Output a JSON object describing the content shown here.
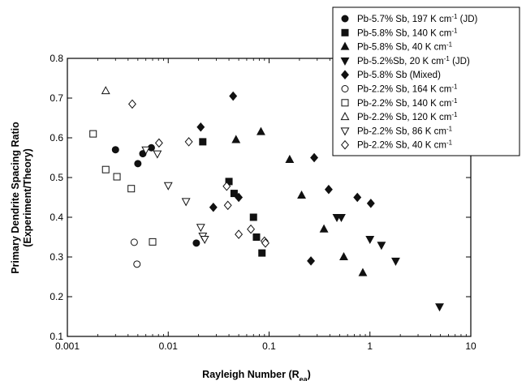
{
  "chart_data": {
    "type": "scatter",
    "xlabel": "Rayleigh Number (R",
    "xlabel_sub": "ea",
    "xlabel_end": ")",
    "ylabel_line1": "Primary Dendrite Spacing Ratio",
    "ylabel_line2": "(Experiment/Theory)",
    "x_scale": "log",
    "xlim": [
      0.001,
      10
    ],
    "ylim": [
      0.1,
      0.8
    ],
    "x_ticks": [
      0.001,
      0.01,
      0.1,
      1,
      10
    ],
    "x_tick_labels": [
      "0.001",
      "0.01",
      "0.1",
      "1",
      "10"
    ],
    "y_ticks": [
      0.1,
      0.2,
      0.3,
      0.4,
      0.5,
      0.6,
      0.7,
      0.8
    ],
    "y_tick_labels": [
      "0.1",
      "0.2",
      "0.3",
      "0.4",
      "0.5",
      "0.6",
      "0.7",
      "0.8"
    ],
    "grid": false,
    "legend_position": "top-right",
    "series": [
      {
        "name_main": "Pb-5.7% Sb, 197 K cm",
        "name_sup": "-1",
        "name_tail": " (JD)",
        "marker": "circle",
        "filled": true,
        "points": [
          [
            0.003,
            0.57
          ],
          [
            0.005,
            0.535
          ],
          [
            0.0056,
            0.56
          ],
          [
            0.0068,
            0.575
          ],
          [
            0.019,
            0.335
          ]
        ]
      },
      {
        "name_main": "Pb-5.8% Sb, 140 K cm",
        "name_sup": "-1",
        "name_tail": "",
        "marker": "square",
        "filled": true,
        "points": [
          [
            0.022,
            0.59
          ],
          [
            0.04,
            0.49
          ],
          [
            0.045,
            0.46
          ],
          [
            0.07,
            0.4
          ],
          [
            0.075,
            0.35
          ],
          [
            0.085,
            0.31
          ]
        ]
      },
      {
        "name_main": "Pb-5.8% Sb, 40 K cm",
        "name_sup": "-1",
        "name_tail": "",
        "marker": "triangle-up",
        "filled": true,
        "points": [
          [
            0.047,
            0.595
          ],
          [
            0.083,
            0.615
          ],
          [
            0.16,
            0.545
          ],
          [
            0.21,
            0.455
          ],
          [
            0.35,
            0.37
          ],
          [
            0.55,
            0.3
          ],
          [
            0.85,
            0.26
          ]
        ]
      },
      {
        "name_main": "Pb-5.2%Sb, 20 K cm",
        "name_sup": "-1",
        "name_tail": " (JD)",
        "marker": "triangle-down",
        "filled": true,
        "points": [
          [
            0.47,
            0.4
          ],
          [
            0.52,
            0.4
          ],
          [
            1.0,
            0.345
          ],
          [
            1.3,
            0.33
          ],
          [
            1.8,
            0.29
          ],
          [
            4.9,
            0.175
          ]
        ]
      },
      {
        "name_main": "Pb-5.8% Sb (Mixed)",
        "name_sup": "",
        "name_tail": "",
        "marker": "diamond",
        "filled": true,
        "points": [
          [
            0.021,
            0.627
          ],
          [
            0.044,
            0.705
          ],
          [
            0.028,
            0.425
          ],
          [
            0.05,
            0.45
          ],
          [
            0.28,
            0.55
          ],
          [
            0.39,
            0.47
          ],
          [
            0.26,
            0.29
          ],
          [
            0.75,
            0.45
          ],
          [
            1.02,
            0.435
          ]
        ]
      },
      {
        "name_main": "Pb-2.2% Sb, 164 K cm",
        "name_sup": "-1",
        "name_tail": "",
        "marker": "circle",
        "filled": false,
        "points": [
          [
            0.0046,
            0.337
          ],
          [
            0.0049,
            0.282
          ]
        ]
      },
      {
        "name_main": "Pb-2.2% Sb, 140 K cm",
        "name_sup": "-1",
        "name_tail": "",
        "marker": "square",
        "filled": false,
        "points": [
          [
            0.0018,
            0.61
          ],
          [
            0.0024,
            0.52
          ],
          [
            0.0031,
            0.502
          ],
          [
            0.0043,
            0.472
          ],
          [
            0.007,
            0.338
          ]
        ]
      },
      {
        "name_main": "Pb-2.2% Sb, 120 K cm",
        "name_sup": "-1",
        "name_tail": "",
        "marker": "triangle-up",
        "filled": false,
        "points": [
          [
            0.0024,
            0.718
          ]
        ]
      },
      {
        "name_main": "Pb-2.2% Sb, 86 K cm",
        "name_sup": "-1",
        "name_tail": "",
        "marker": "triangle-down",
        "filled": false,
        "points": [
          [
            0.006,
            0.57
          ],
          [
            0.0078,
            0.56
          ],
          [
            0.01,
            0.48
          ],
          [
            0.015,
            0.44
          ],
          [
            0.021,
            0.375
          ],
          [
            0.022,
            0.353
          ],
          [
            0.023,
            0.345
          ]
        ]
      },
      {
        "name_main": "Pb-2.2% Sb, 40 K cm",
        "name_sup": "-1",
        "name_tail": "",
        "marker": "diamond",
        "filled": false,
        "points": [
          [
            0.0044,
            0.685
          ],
          [
            0.0081,
            0.587
          ],
          [
            0.016,
            0.59
          ],
          [
            0.038,
            0.478
          ],
          [
            0.039,
            0.43
          ],
          [
            0.05,
            0.357
          ],
          [
            0.066,
            0.37
          ],
          [
            0.09,
            0.34
          ],
          [
            0.092,
            0.335
          ]
        ]
      }
    ]
  }
}
